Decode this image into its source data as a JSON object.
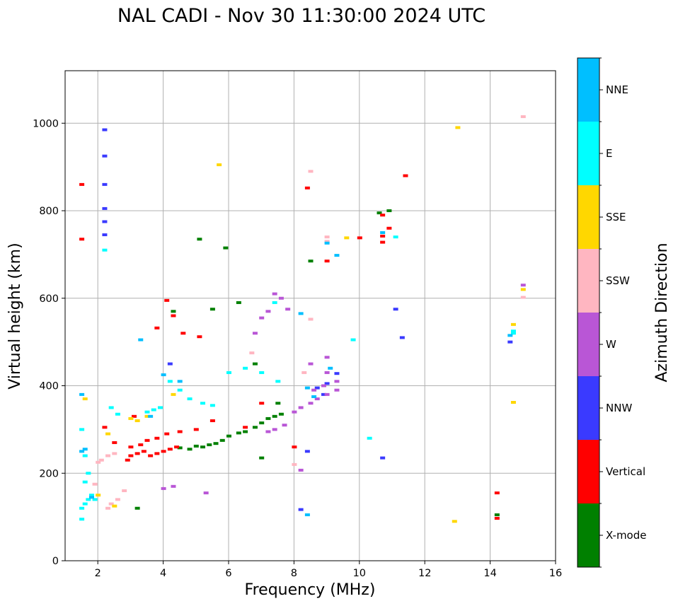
{
  "chart_data": {
    "type": "scatter",
    "title": "NAL CADI - Nov 30 11:30:00 2024 UTC",
    "xlabel": "Frequency (MHz)",
    "ylabel": "Virtual height (km)",
    "xlim": [
      1,
      16
    ],
    "ylim": [
      0,
      1120
    ],
    "xticks": [
      2,
      4,
      6,
      8,
      10,
      12,
      14,
      16
    ],
    "yticks": [
      0,
      200,
      400,
      600,
      800,
      1000
    ],
    "grid": true,
    "colorbar": {
      "title": "Azimuth Direction",
      "categories": [
        {
          "name": "X-mode",
          "color": "#008000"
        },
        {
          "name": "Vertical",
          "color": "#ff0000"
        },
        {
          "name": "NNW",
          "color": "#3a3aff"
        },
        {
          "name": "W",
          "color": "#b956d6"
        },
        {
          "name": "SSW",
          "color": "#ffb6c1"
        },
        {
          "name": "SSE",
          "color": "#ffd700"
        },
        {
          "name": "E",
          "color": "#00ffff"
        },
        {
          "name": "NNE",
          "color": "#00bfff"
        }
      ]
    },
    "series": [
      {
        "name": "X-mode",
        "points": [
          [
            3.2,
            120
          ],
          [
            4.5,
            258
          ],
          [
            4.8,
            255
          ],
          [
            5.0,
            262
          ],
          [
            5.2,
            260
          ],
          [
            5.4,
            265
          ],
          [
            5.6,
            268
          ],
          [
            5.8,
            275
          ],
          [
            6.0,
            285
          ],
          [
            6.3,
            292
          ],
          [
            6.5,
            295
          ],
          [
            6.8,
            305
          ],
          [
            7.0,
            315
          ],
          [
            7.2,
            325
          ],
          [
            7.4,
            330
          ],
          [
            7.6,
            335
          ],
          [
            5.5,
            575
          ],
          [
            6.3,
            590
          ],
          [
            6.8,
            450
          ],
          [
            7.5,
            360
          ],
          [
            10.6,
            795
          ],
          [
            10.9,
            800
          ],
          [
            14.2,
            105
          ],
          [
            4.3,
            570
          ],
          [
            5.1,
            735
          ],
          [
            5.9,
            715
          ],
          [
            8.5,
            685
          ],
          [
            7.0,
            235
          ]
        ]
      },
      {
        "name": "Vertical",
        "points": [
          [
            1.5,
            860
          ],
          [
            1.5,
            735
          ],
          [
            2.9,
            230
          ],
          [
            3.0,
            240
          ],
          [
            3.2,
            245
          ],
          [
            3.4,
            250
          ],
          [
            3.6,
            240
          ],
          [
            3.8,
            245
          ],
          [
            4.0,
            250
          ],
          [
            4.2,
            255
          ],
          [
            4.4,
            260
          ],
          [
            3.0,
            260
          ],
          [
            3.3,
            265
          ],
          [
            3.5,
            275
          ],
          [
            3.8,
            280
          ],
          [
            4.1,
            290
          ],
          [
            4.5,
            295
          ],
          [
            5.0,
            300
          ],
          [
            5.5,
            320
          ],
          [
            6.5,
            305
          ],
          [
            7.0,
            360
          ],
          [
            8.0,
            260
          ],
          [
            4.1,
            595
          ],
          [
            4.3,
            560
          ],
          [
            3.8,
            532
          ],
          [
            4.6,
            520
          ],
          [
            5.1,
            512
          ],
          [
            9.0,
            685
          ],
          [
            10.0,
            738
          ],
          [
            10.7,
            742
          ],
          [
            10.7,
            728
          ],
          [
            10.7,
            790
          ],
          [
            10.9,
            760
          ],
          [
            11.4,
            880
          ],
          [
            14.2,
            155
          ],
          [
            14.2,
            97
          ],
          [
            8.4,
            852
          ],
          [
            2.5,
            270
          ],
          [
            2.2,
            305
          ],
          [
            3.1,
            330
          ]
        ]
      },
      {
        "name": "NNW",
        "points": [
          [
            2.2,
            985
          ],
          [
            2.2,
            925
          ],
          [
            2.2,
            860
          ],
          [
            2.2,
            805
          ],
          [
            2.2,
            775
          ],
          [
            2.2,
            745
          ],
          [
            9.3,
            428
          ],
          [
            9.0,
            405
          ],
          [
            8.7,
            395
          ],
          [
            8.9,
            380
          ],
          [
            11.1,
            575
          ],
          [
            11.3,
            510
          ],
          [
            10.7,
            235
          ],
          [
            14.6,
            500
          ],
          [
            8.2,
            117
          ],
          [
            8.4,
            250
          ],
          [
            4.2,
            450
          ]
        ]
      },
      {
        "name": "W",
        "points": [
          [
            8.2,
            350
          ],
          [
            8.5,
            360
          ],
          [
            8.7,
            370
          ],
          [
            9.0,
            380
          ],
          [
            9.3,
            390
          ],
          [
            8.6,
            390
          ],
          [
            8.9,
            400
          ],
          [
            9.0,
            465
          ],
          [
            9.3,
            410
          ],
          [
            7.8,
            575
          ],
          [
            7.6,
            600
          ],
          [
            7.4,
            610
          ],
          [
            7.2,
            570
          ],
          [
            7.0,
            555
          ],
          [
            6.8,
            520
          ],
          [
            8.0,
            340
          ],
          [
            7.7,
            310
          ],
          [
            7.4,
            300
          ],
          [
            7.2,
            295
          ],
          [
            4.0,
            165
          ],
          [
            4.3,
            170
          ],
          [
            5.3,
            155
          ],
          [
            8.2,
            207
          ],
          [
            15.0,
            630
          ],
          [
            9.0,
            430
          ],
          [
            8.5,
            450
          ]
        ]
      },
      {
        "name": "SSW",
        "points": [
          [
            2.3,
            240
          ],
          [
            2.5,
            245
          ],
          [
            2.1,
            230
          ],
          [
            2.4,
            130
          ],
          [
            2.6,
            140
          ],
          [
            2.3,
            120
          ],
          [
            1.9,
            175
          ],
          [
            2.0,
            225
          ],
          [
            8.5,
            890
          ],
          [
            9.0,
            740
          ],
          [
            9.0,
            730
          ],
          [
            8.5,
            552
          ],
          [
            8.3,
            430
          ],
          [
            15.0,
            1015
          ],
          [
            15.0,
            602
          ],
          [
            8.0,
            220
          ],
          [
            2.8,
            160
          ],
          [
            6.7,
            475
          ]
        ]
      },
      {
        "name": "SSE",
        "points": [
          [
            1.6,
            370
          ],
          [
            2.0,
            150
          ],
          [
            2.5,
            125
          ],
          [
            3.0,
            325
          ],
          [
            3.2,
            320
          ],
          [
            3.5,
            330
          ],
          [
            4.3,
            380
          ],
          [
            13.0,
            990
          ],
          [
            12.9,
            90
          ],
          [
            14.7,
            540
          ],
          [
            14.7,
            362
          ],
          [
            15.0,
            620
          ],
          [
            5.7,
            905
          ],
          [
            9.6,
            738
          ],
          [
            2.3,
            290
          ]
        ]
      },
      {
        "name": "E",
        "points": [
          [
            1.5,
            120
          ],
          [
            1.6,
            130
          ],
          [
            1.7,
            140
          ],
          [
            1.8,
            150
          ],
          [
            1.9,
            140
          ],
          [
            1.5,
            95
          ],
          [
            1.6,
            240
          ],
          [
            1.5,
            300
          ],
          [
            1.6,
            180
          ],
          [
            1.7,
            200
          ],
          [
            3.5,
            340
          ],
          [
            3.7,
            345
          ],
          [
            3.9,
            350
          ],
          [
            4.2,
            410
          ],
          [
            4.5,
            390
          ],
          [
            4.8,
            370
          ],
          [
            5.2,
            360
          ],
          [
            5.5,
            355
          ],
          [
            6.0,
            430
          ],
          [
            6.5,
            440
          ],
          [
            7.0,
            430
          ],
          [
            2.2,
            710
          ],
          [
            7.4,
            590
          ],
          [
            7.5,
            410
          ],
          [
            14.7,
            520
          ],
          [
            14.7,
            525
          ],
          [
            10.3,
            280
          ],
          [
            9.8,
            505
          ],
          [
            11.1,
            740
          ],
          [
            2.4,
            350
          ],
          [
            2.6,
            335
          ]
        ]
      },
      {
        "name": "NNE",
        "points": [
          [
            1.5,
            250
          ],
          [
            1.6,
            255
          ],
          [
            1.5,
            380
          ],
          [
            8.4,
            395
          ],
          [
            8.6,
            375
          ],
          [
            9.1,
            440
          ],
          [
            10.7,
            750
          ],
          [
            9.3,
            698
          ],
          [
            9.0,
            726
          ],
          [
            14.6,
            515
          ],
          [
            8.2,
            565
          ],
          [
            4.5,
            410
          ],
          [
            3.6,
            330
          ],
          [
            1.8,
            145
          ],
          [
            4.0,
            425
          ],
          [
            8.4,
            105
          ],
          [
            3.3,
            505
          ]
        ]
      }
    ]
  }
}
